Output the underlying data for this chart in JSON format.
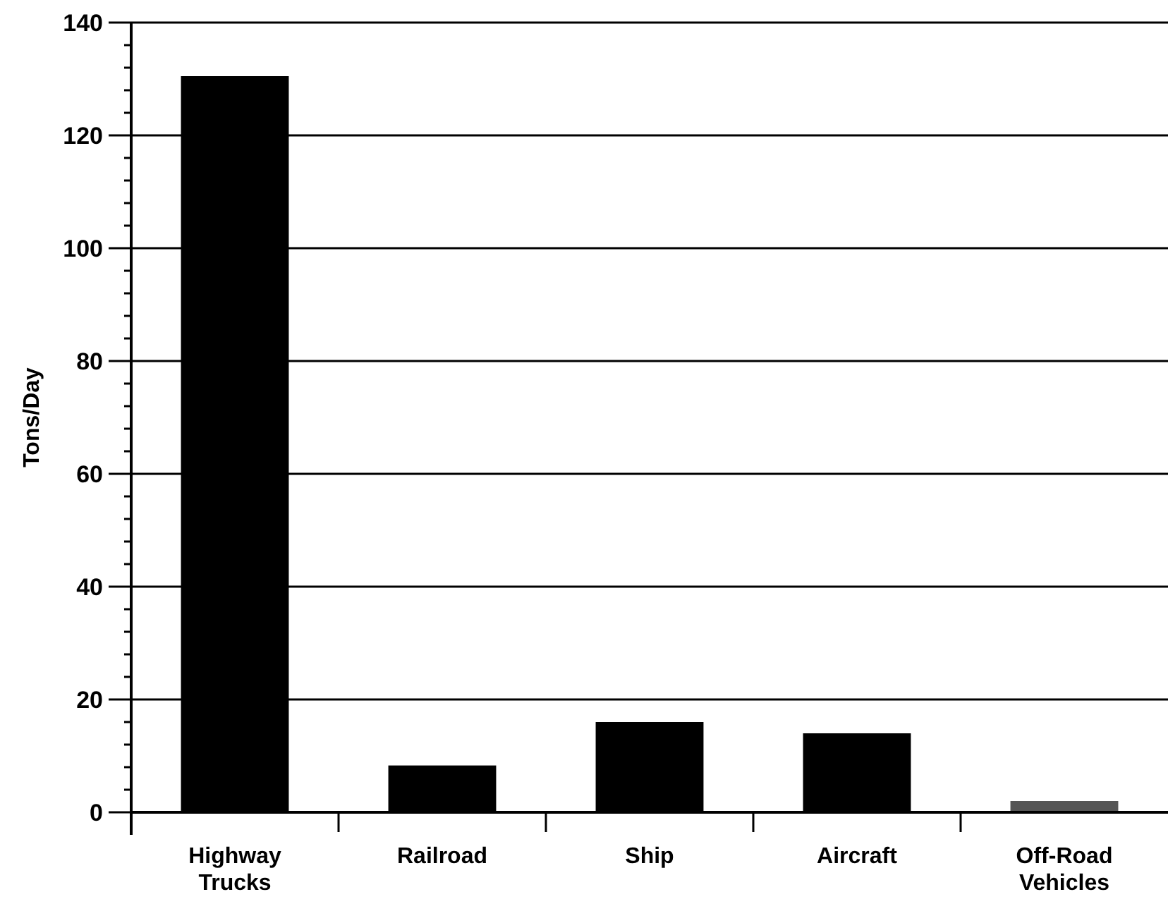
{
  "chart_data": {
    "type": "bar",
    "ylabel": "Tons/Day",
    "categories": [
      "Highway Trucks",
      "Railroad",
      "Ship",
      "Aircraft",
      "Off-Road Vehicles"
    ],
    "values": [
      130.5,
      8.3,
      16,
      14,
      2
    ],
    "colors": [
      "#000000",
      "#000000",
      "#000000",
      "#000000",
      "#555555"
    ],
    "ylim": [
      0,
      140
    ],
    "yticks": [
      0,
      {
        "value": 4,
        "label": null
      },
      {
        "value": 8,
        "label": null
      },
      {
        "value": 12,
        "label": null
      },
      {
        "value": 16,
        "label": null
      },
      20,
      {
        "value": 24,
        "label": null
      },
      {
        "value": 28,
        "label": null
      },
      {
        "value": 32,
        "label": null
      },
      {
        "value": 36,
        "label": null
      },
      40,
      {
        "value": 44,
        "label": null
      },
      {
        "value": 48,
        "label": null
      },
      {
        "value": 52,
        "label": null
      },
      {
        "value": 56,
        "label": null
      },
      60,
      {
        "value": 64,
        "label": null
      },
      {
        "value": 68,
        "label": null
      },
      {
        "value": 72,
        "label": null
      },
      {
        "value": 76,
        "label": null
      },
      80,
      {
        "value": 84,
        "label": null
      },
      {
        "value": 88,
        "label": null
      },
      {
        "value": 92,
        "label": null
      },
      {
        "value": 96,
        "label": null
      },
      100,
      {
        "value": 104,
        "label": null
      },
      {
        "value": 108,
        "label": null
      },
      {
        "value": 112,
        "label": null
      },
      {
        "value": 116,
        "label": null
      },
      120,
      {
        "value": 124,
        "label": null
      },
      {
        "value": 128,
        "label": null
      },
      {
        "value": 132,
        "label": null
      },
      {
        "value": 136,
        "label": null
      },
      140
    ],
    "grid": "y"
  }
}
